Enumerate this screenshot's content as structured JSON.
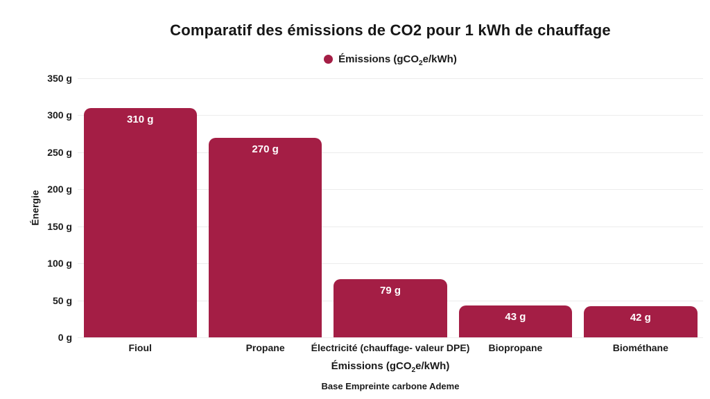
{
  "labels": {
    "emissions_prefix": "Émissions (gCO",
    "emissions_sub": "2",
    "emissions_suffix": "e/kWh)"
  },
  "colors": {
    "bar": "#a41e45",
    "grid": "#ececec",
    "text": "#1a1a1a",
    "value_label": "#ffffff"
  },
  "chart_data": {
    "type": "bar",
    "title": "Comparatif des émissions de CO2 pour 1 kWh de chauffage",
    "legend": [
      "Émissions (gCO₂e/kWh)"
    ],
    "legend_position": "top",
    "categories": [
      "Fioul",
      "Propane",
      "Électricité (chauffage- valeur DPE)",
      "Biopropane",
      "Biométhane"
    ],
    "values": [
      310,
      270,
      79,
      43,
      42
    ],
    "value_labels": [
      "310 g",
      "270 g",
      "79 g",
      "43 g",
      "42 g"
    ],
    "xlabel": "Émissions (gCO₂e/kWh)",
    "ylabel": "Énergie",
    "ylim": [
      0,
      350
    ],
    "ytick_step": 50,
    "ytick_labels": [
      "0 g",
      "50 g",
      "100 g",
      "150 g",
      "200 g",
      "250 g",
      "300 g",
      "350 g"
    ],
    "grid": true,
    "source_note": "Base Empreinte carbone Ademe"
  }
}
